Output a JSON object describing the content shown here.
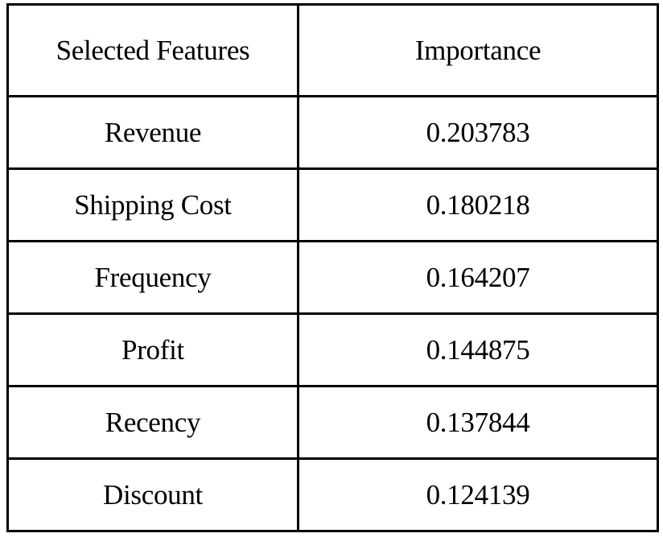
{
  "table": {
    "headers": [
      "Selected Features",
      "Importance"
    ],
    "rows": [
      [
        "Revenue",
        "0.203783"
      ],
      [
        "Shipping Cost",
        "0.180218"
      ],
      [
        "Frequency",
        "0.164207"
      ],
      [
        "Profit",
        "0.144875"
      ],
      [
        "Recency",
        "0.137844"
      ],
      [
        "Discount",
        "0.124139"
      ]
    ]
  }
}
